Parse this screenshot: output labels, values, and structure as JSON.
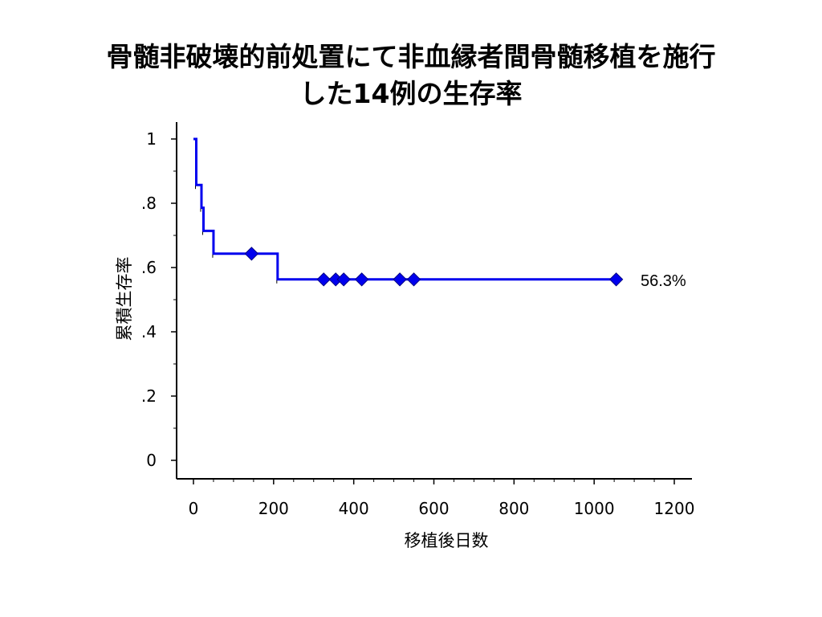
{
  "slide": {
    "title_line1": "骨髄非破壊的前処置にて非血縁者間骨髄移植を施行",
    "title_line2": "した14例の生存率"
  },
  "chart_data": {
    "type": "line",
    "xlabel": "移植後日数",
    "ylabel": "累積生存率",
    "xlim": [
      0,
      1200
    ],
    "ylim": [
      0,
      1
    ],
    "x_ticks": [
      0,
      200,
      400,
      600,
      800,
      1000,
      1200
    ],
    "x_tick_labels": [
      "0",
      "200",
      "400",
      "600",
      "800",
      "1000",
      "1200"
    ],
    "y_ticks": [
      0,
      0.2,
      0.4,
      0.6,
      0.8,
      1
    ],
    "y_tick_labels": [
      "0",
      ".2",
      ".4",
      ".6",
      ".8",
      "1"
    ],
    "line_color": "#0000ee",
    "series": [
      {
        "step_x": [
          0,
          7,
          7,
          20,
          20,
          25,
          25,
          50,
          50,
          210,
          210,
          1055
        ],
        "step_y": [
          1.0,
          1.0,
          0.857,
          0.857,
          0.786,
          0.786,
          0.714,
          0.714,
          0.643,
          0.643,
          0.563,
          0.563
        ],
        "censored_x": [
          145,
          325,
          355,
          375,
          420,
          515,
          550,
          1055
        ],
        "censored_y": [
          0.643,
          0.563,
          0.563,
          0.563,
          0.563,
          0.563,
          0.563,
          0.563
        ]
      }
    ],
    "annotation": "56.3%"
  }
}
